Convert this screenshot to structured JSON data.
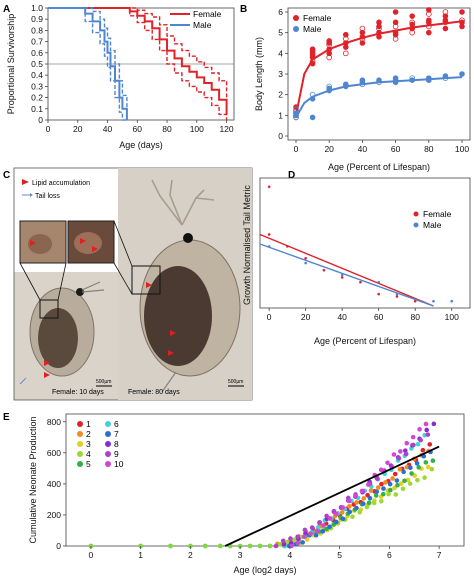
{
  "panels": [
    "A",
    "B",
    "C",
    "D",
    "E"
  ],
  "colors": {
    "female": "#e0222a",
    "male": "#4f86d1"
  },
  "chart_data": [
    {
      "id": "A",
      "type": "line",
      "xlabel": "Age (days)",
      "ylabel": "Proportional Survivorship",
      "xlim": [
        0,
        125
      ],
      "ylim": [
        0,
        1.0
      ],
      "xticks": [
        0,
        20,
        40,
        60,
        80,
        100,
        120
      ],
      "yticks": [
        0,
        0.1,
        0.2,
        0.3,
        0.4,
        0.5,
        0.6,
        0.7,
        0.8,
        0.9,
        1.0
      ],
      "ytick_labels": [
        "0",
        "0.1",
        "0.2",
        "0.3",
        "0.4",
        "0.5",
        "0.6",
        "0.7",
        "0.8",
        "0.9",
        "1.0"
      ],
      "reference_line": 0.5,
      "legend": "top-right",
      "series": [
        {
          "name": "Female",
          "color": "#e0222a",
          "x": [
            0,
            45,
            55,
            60,
            65,
            70,
            75,
            80,
            85,
            90,
            95,
            100,
            105,
            110,
            115,
            120
          ],
          "y": [
            1.0,
            1.0,
            0.97,
            0.93,
            0.88,
            0.82,
            0.72,
            0.62,
            0.55,
            0.48,
            0.43,
            0.38,
            0.33,
            0.27,
            0.18,
            0.05
          ],
          "upper": [
            1.0,
            1.0,
            1.0,
            0.98,
            0.95,
            0.92,
            0.85,
            0.75,
            0.68,
            0.62,
            0.57,
            0.52,
            0.47,
            0.42,
            0.35,
            0.2
          ],
          "lower": [
            1.0,
            1.0,
            0.93,
            0.87,
            0.8,
            0.72,
            0.62,
            0.5,
            0.42,
            0.35,
            0.3,
            0.25,
            0.2,
            0.13,
            0.05,
            0.0
          ]
        },
        {
          "name": "Male",
          "color": "#4f86d1",
          "x": [
            0,
            20,
            25,
            30,
            35,
            38,
            40,
            42,
            45,
            48,
            50,
            53
          ],
          "y": [
            1.0,
            1.0,
            0.95,
            0.88,
            0.8,
            0.7,
            0.6,
            0.48,
            0.35,
            0.2,
            0.1,
            0.0
          ],
          "upper": [
            1.0,
            1.0,
            1.0,
            0.97,
            0.9,
            0.82,
            0.73,
            0.62,
            0.5,
            0.35,
            0.22,
            0.1
          ],
          "lower": [
            1.0,
            1.0,
            0.88,
            0.78,
            0.68,
            0.57,
            0.47,
            0.35,
            0.2,
            0.07,
            0.0,
            0.0
          ]
        }
      ]
    },
    {
      "id": "B",
      "type": "scatter",
      "xlabel": "Age (Percent of Lifespan)",
      "ylabel": "Body Length (mm)",
      "xlim": [
        0,
        100
      ],
      "ylim": [
        0,
        6
      ],
      "xticks": [
        0,
        20,
        40,
        60,
        80,
        100
      ],
      "yticks": [
        0,
        1,
        2,
        3,
        4,
        5,
        6
      ],
      "legend": "top-left",
      "series": [
        {
          "name": "Female",
          "color": "#e0222a",
          "points": [
            [
              0,
              0.9
            ],
            [
              0,
              1.0
            ],
            [
              0,
              1.1
            ],
            [
              0,
              1.2
            ],
            [
              0,
              1.4
            ],
            [
              10,
              3.5
            ],
            [
              10,
              3.6
            ],
            [
              10,
              3.8
            ],
            [
              10,
              3.9
            ],
            [
              10,
              4.0
            ],
            [
              10,
              4.1
            ],
            [
              10,
              4.2
            ],
            [
              20,
              3.8
            ],
            [
              20,
              4.0
            ],
            [
              20,
              4.2
            ],
            [
              20,
              4.4
            ],
            [
              20,
              4.5
            ],
            [
              20,
              4.6
            ],
            [
              30,
              4.0
            ],
            [
              30,
              4.3
            ],
            [
              30,
              4.5
            ],
            [
              30,
              4.7
            ],
            [
              30,
              4.9
            ],
            [
              40,
              4.5
            ],
            [
              40,
              4.7
            ],
            [
              40,
              4.8
            ],
            [
              40,
              5.0
            ],
            [
              40,
              5.2
            ],
            [
              50,
              4.8
            ],
            [
              50,
              5.0
            ],
            [
              50,
              5.2
            ],
            [
              50,
              5.3
            ],
            [
              50,
              5.5
            ],
            [
              60,
              4.7
            ],
            [
              60,
              4.9
            ],
            [
              60,
              5.0
            ],
            [
              60,
              5.3
            ],
            [
              60,
              5.5
            ],
            [
              60,
              6.0
            ],
            [
              70,
              5.0
            ],
            [
              70,
              5.2
            ],
            [
              70,
              5.4
            ],
            [
              70,
              5.5
            ],
            [
              70,
              5.8
            ],
            [
              80,
              5.0
            ],
            [
              80,
              5.3
            ],
            [
              80,
              5.5
            ],
            [
              80,
              5.6
            ],
            [
              80,
              5.9
            ],
            [
              80,
              6.1
            ],
            [
              90,
              5.2
            ],
            [
              90,
              5.5
            ],
            [
              90,
              5.6
            ],
            [
              90,
              5.8
            ],
            [
              90,
              6.0
            ],
            [
              100,
              5.3
            ],
            [
              100,
              5.5
            ],
            [
              100,
              5.6
            ],
            [
              100,
              6.0
            ]
          ],
          "fit": {
            "x": [
              0,
              5,
              10,
              20,
              30,
              40,
              50,
              60,
              70,
              80,
              90,
              100
            ],
            "y": [
              1.0,
              3.0,
              3.7,
              4.2,
              4.5,
              4.75,
              4.95,
              5.1,
              5.25,
              5.35,
              5.45,
              5.55
            ]
          }
        },
        {
          "name": "Male",
          "color": "#4f86d1",
          "points": [
            [
              0,
              0.9
            ],
            [
              0,
              1.0
            ],
            [
              0,
              1.1
            ],
            [
              0,
              1.3
            ],
            [
              10,
              0.9
            ],
            [
              10,
              1.8
            ],
            [
              10,
              2.0
            ],
            [
              20,
              2.2
            ],
            [
              20,
              2.3
            ],
            [
              20,
              2.4
            ],
            [
              30,
              2.4
            ],
            [
              30,
              2.5
            ],
            [
              40,
              2.5
            ],
            [
              40,
              2.6
            ],
            [
              40,
              2.7
            ],
            [
              50,
              2.6
            ],
            [
              50,
              2.7
            ],
            [
              60,
              2.6
            ],
            [
              60,
              2.7
            ],
            [
              60,
              2.8
            ],
            [
              70,
              2.7
            ],
            [
              70,
              2.8
            ],
            [
              80,
              2.7
            ],
            [
              80,
              2.8
            ],
            [
              90,
              2.8
            ],
            [
              90,
              2.9
            ],
            [
              100,
              3.0
            ]
          ],
          "fit": {
            "x": [
              0,
              5,
              10,
              20,
              30,
              40,
              50,
              60,
              70,
              80,
              90,
              100
            ],
            "y": [
              0.9,
              1.6,
              1.9,
              2.2,
              2.4,
              2.5,
              2.6,
              2.65,
              2.7,
              2.75,
              2.8,
              2.85
            ]
          }
        }
      ]
    },
    {
      "id": "D",
      "type": "scatter",
      "xlabel": "Age (Percent of Lifespan)",
      "ylabel": "Growth Normalised Tail Metric",
      "xlim": [
        -5,
        110
      ],
      "ylim": [
        0,
        0.52
      ],
      "xticks": [
        0,
        20,
        40,
        60,
        80,
        100
      ],
      "yticks": [],
      "legend": "top-right",
      "series": [
        {
          "name": "Female",
          "color": "#e0222a",
          "points": [
            [
              0,
              0.5
            ],
            [
              0,
              0.3
            ],
            [
              10,
              0.25
            ],
            [
              20,
              0.2
            ],
            [
              30,
              0.15
            ],
            [
              40,
              0.12
            ],
            [
              50,
              0.1
            ],
            [
              60,
              0.05
            ],
            [
              70,
              0.04
            ],
            [
              80,
              0.02
            ]
          ],
          "fit": {
            "x": [
              -5,
              90
            ],
            "y": [
              0.3,
              0.0
            ]
          }
        },
        {
          "name": "Male",
          "color": "#4f86d1",
          "points": [
            [
              0,
              0.25
            ],
            [
              20,
              0.18
            ],
            [
              40,
              0.13
            ],
            [
              60,
              0.1
            ],
            [
              70,
              0.05
            ],
            [
              90,
              0.02
            ],
            [
              100,
              0.02
            ]
          ],
          "fit": {
            "x": [
              -5,
              90
            ],
            "y": [
              0.26,
              0.0
            ]
          }
        }
      ]
    },
    {
      "id": "E",
      "type": "scatter",
      "xlabel": "Age (log2 days)",
      "ylabel": "Cumulative Neonate Production",
      "xlim": [
        -0.5,
        7.5
      ],
      "ylim": [
        0,
        850
      ],
      "xticks": [
        0,
        1,
        2,
        3,
        4,
        5,
        6,
        7
      ],
      "yticks": [
        0,
        200,
        400,
        600,
        800
      ],
      "legend": "top-left",
      "regression": {
        "x": [
          2.7,
          7.0
        ],
        "y": [
          0,
          640
        ]
      },
      "series": [
        {
          "name": "1",
          "color": "#e0222a"
        },
        {
          "name": "2",
          "color": "#f28c1c"
        },
        {
          "name": "3",
          "color": "#e2d21e"
        },
        {
          "name": "4",
          "color": "#9ed832"
        },
        {
          "name": "5",
          "color": "#32b04a"
        },
        {
          "name": "6",
          "color": "#3fd2e0"
        },
        {
          "name": "7",
          "color": "#2a6fd6"
        },
        {
          "name": "8",
          "color": "#8a2bd2"
        },
        {
          "name": "9",
          "color": "#b040c8"
        },
        {
          "name": "10",
          "color": "#d347d0"
        }
      ]
    }
  ],
  "photo": {
    "legend_lipid": "Lipid accumulation",
    "legend_tail": "Tail loss",
    "label_young": "Female: 10 days",
    "label_old": "Female: 80 days",
    "scale_young": "500µm",
    "scale_old": "500µm"
  }
}
